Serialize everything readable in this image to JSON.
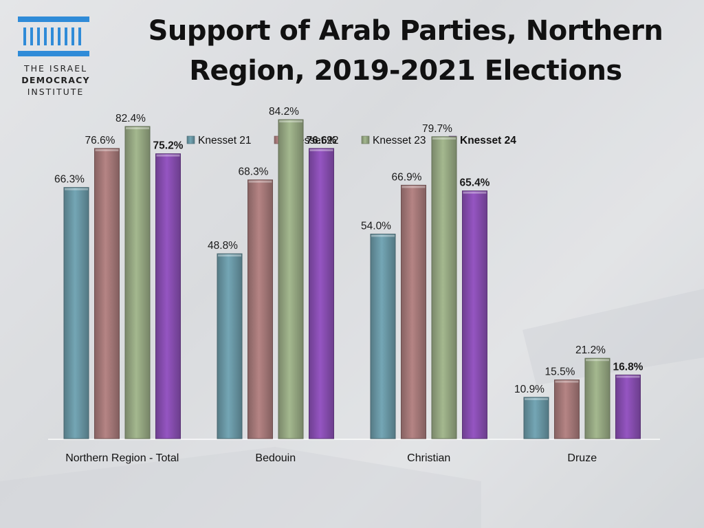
{
  "logo": {
    "icon": "columns-building-icon",
    "line1": "THE ISRAEL",
    "line2": "DEMOCRACY",
    "line3": "INSTITUTE",
    "color": "#2f8bd8"
  },
  "title_line1": "Support of Arab Parties, Northern",
  "title_line2": "Region, 2019-2021 Elections",
  "chart_data": {
    "type": "bar",
    "title": "Support of Arab Parties, Northern Region, 2019-2021 Elections",
    "categories": [
      "Northern Region - Total",
      "Bedouin",
      "Christian",
      "Druze"
    ],
    "series": [
      {
        "name": "Knesset 21",
        "values": [
          66.3,
          48.8,
          54.0,
          10.9
        ],
        "labels": [
          "66.3%",
          "48.8%",
          "54.0%",
          "10.9%"
        ],
        "color": "#6b9aa8",
        "bold": false
      },
      {
        "name": "Knesset 22",
        "values": [
          76.6,
          68.3,
          66.9,
          15.5
        ],
        "labels": [
          "76.6%",
          "68.3%",
          "66.9%",
          "15.5%"
        ],
        "color": "#a87a7a",
        "bold": false
      },
      {
        "name": "Knesset 23",
        "values": [
          82.4,
          84.2,
          79.7,
          21.2
        ],
        "labels": [
          "82.4%",
          "84.2%",
          "79.7%",
          "21.2%"
        ],
        "color": "#98aa84",
        "bold": false
      },
      {
        "name": "Knesset 24",
        "values": [
          75.2,
          76.6,
          65.4,
          16.8
        ],
        "labels": [
          "75.2%",
          "76.6%",
          "65.4%",
          "16.8%"
        ],
        "color": "#8a4fb4",
        "bold": true
      }
    ],
    "xlabel": "",
    "ylabel": "",
    "ylim": [
      0,
      100
    ],
    "grid": false,
    "legend": "top-center"
  }
}
